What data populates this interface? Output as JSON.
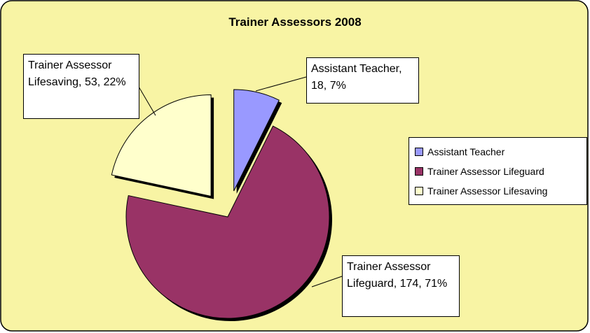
{
  "chart_data": {
    "type": "pie",
    "title": "Trainer Assessors 2008",
    "categories": [
      "Assistant Teacher",
      "Trainer Assessor Lifeguard",
      "Trainer Assessor Lifesaving"
    ],
    "values": [
      18,
      174,
      53
    ],
    "value_labels": [
      "Assistant Teacher, 18, 7%",
      "Trainer Assessor Lifeguard, 174, 71%",
      "Trainer Assessor Lifesaving, 53, 22%"
    ],
    "colors": [
      "#9999ff",
      "#993366",
      "#ffffcc"
    ],
    "exploded": [
      true,
      false,
      true
    ],
    "legend": "right"
  }
}
